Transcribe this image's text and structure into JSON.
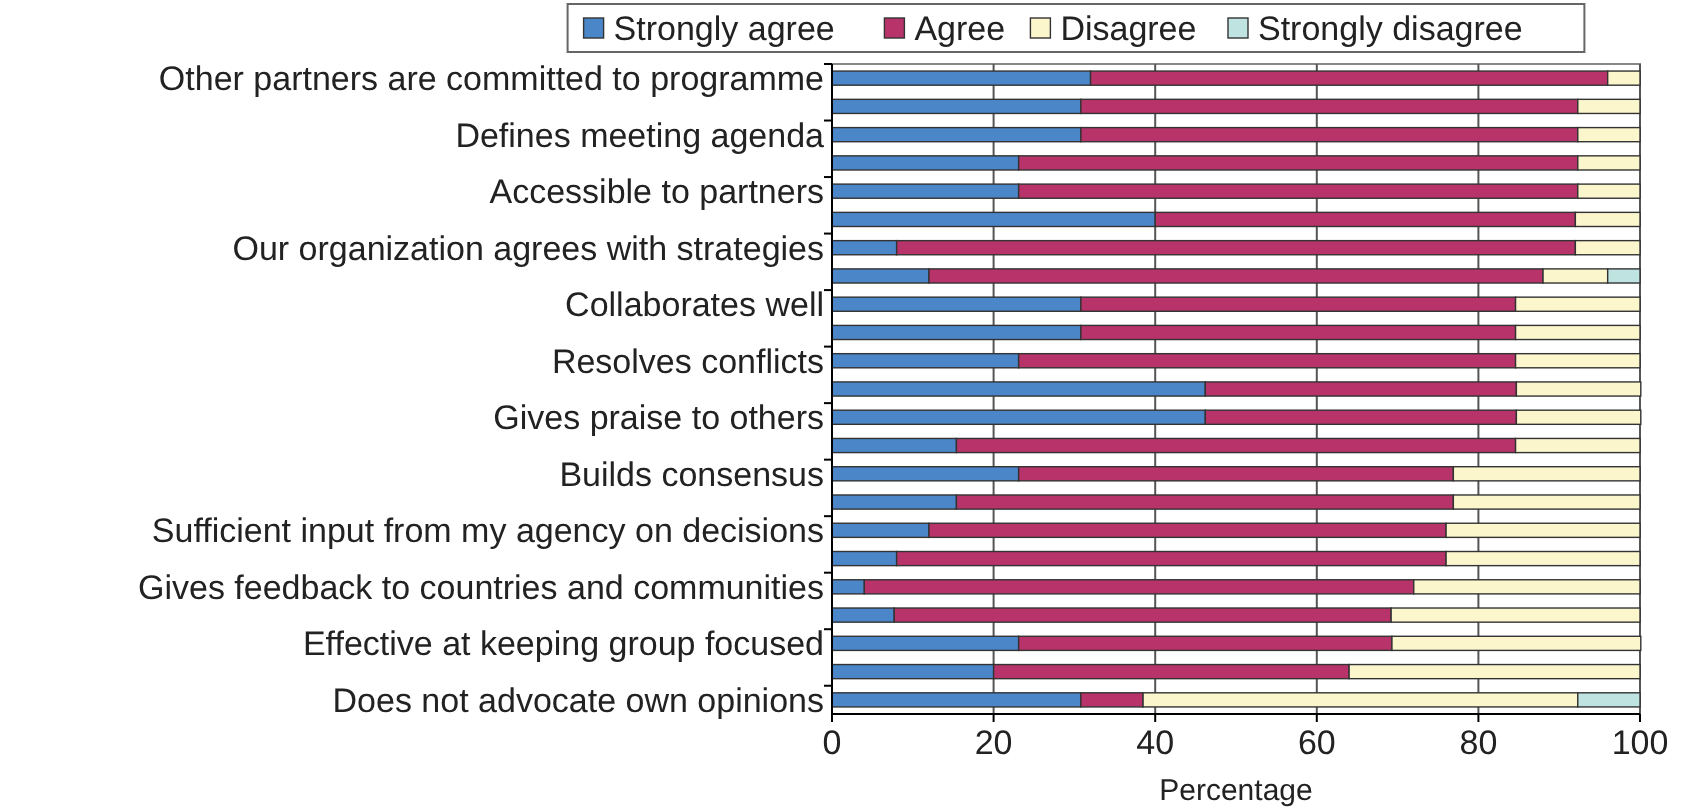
{
  "chart_data": {
    "type": "bar",
    "orientation": "horizontal",
    "stacked": true,
    "xlabel": "Percentage",
    "categories": [
      "Other partners are committed to programme",
      null,
      "Defines meeting agenda",
      null,
      "Accessible to partners",
      null,
      "Our organization agrees with strategies",
      null,
      "Collaborates well",
      null,
      "Resolves conflicts",
      null,
      "Gives praise to others",
      null,
      "Builds consensus",
      null,
      "Sufficient input from my agency on decisions",
      null,
      "Gives feedback to countries and communities",
      null,
      "Effective at keeping group focused",
      null,
      "Does not advocate own opinions"
    ],
    "series": [
      {
        "name": "Strongly agree",
        "color": "#4a86c8",
        "values": [
          32,
          30.8,
          30.8,
          23.1,
          23.1,
          40,
          8,
          12,
          30.8,
          30.8,
          23.1,
          46.2,
          46.2,
          15.4,
          23.1,
          15.4,
          12,
          8,
          4,
          7.7,
          23.1,
          20,
          30.8
        ]
      },
      {
        "name": "Agree",
        "color": "#b8336a",
        "values": [
          64,
          61.5,
          61.5,
          69.2,
          69.2,
          52,
          84,
          76,
          53.8,
          53.8,
          61.5,
          38.5,
          38.5,
          69.2,
          53.8,
          61.5,
          64,
          68,
          68,
          61.5,
          46.2,
          44,
          7.7
        ]
      },
      {
        "name": "Disagree",
        "color": "#fbf6cc",
        "values": [
          4,
          7.7,
          7.7,
          7.7,
          7.7,
          8,
          8,
          8,
          15.4,
          15.4,
          15.4,
          15.4,
          15.4,
          15.4,
          23.1,
          23.1,
          24,
          24,
          28,
          30.8,
          30.8,
          36,
          53.8
        ]
      },
      {
        "name": "Strongly disagree",
        "color": "#bfe3e0",
        "values": [
          0,
          0,
          0,
          0,
          0,
          0,
          0,
          4,
          0,
          0,
          0,
          0,
          0,
          0,
          0,
          0,
          0,
          0,
          0,
          0,
          0,
          0,
          7.7
        ]
      }
    ],
    "xlim": [
      0,
      100
    ],
    "xticks": [
      0,
      20,
      40,
      60,
      80,
      100
    ],
    "grid": "x",
    "legend": "top"
  }
}
